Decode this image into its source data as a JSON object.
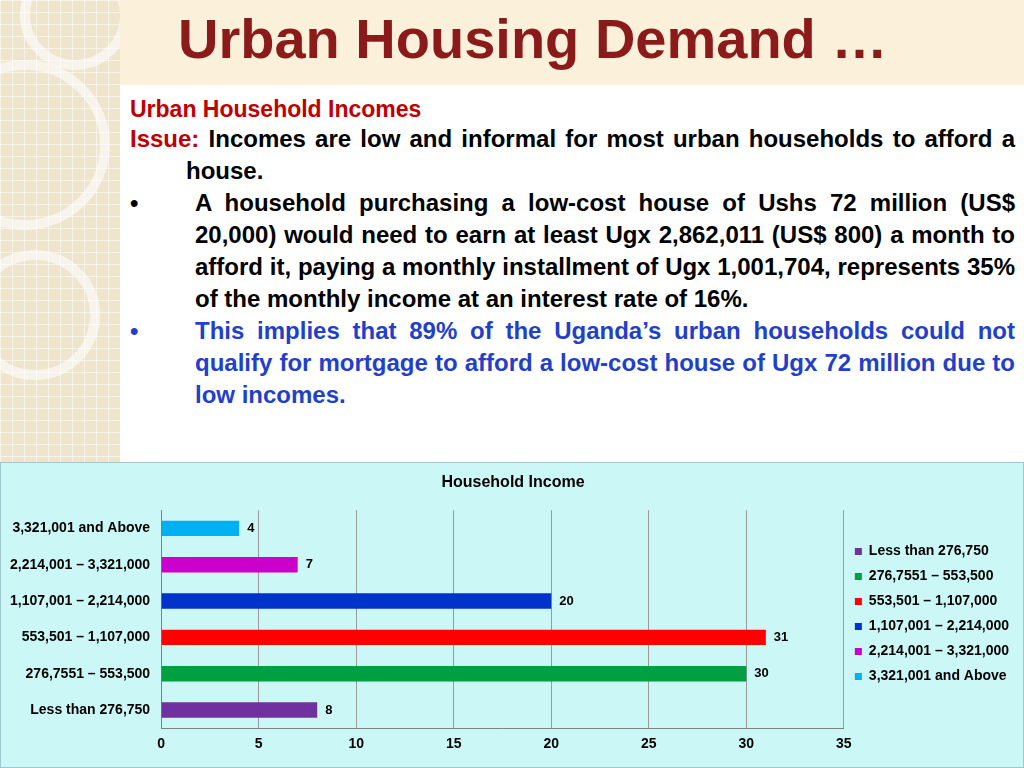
{
  "slide": {
    "title": "Urban Housing Demand …",
    "heading": "Urban Household Incomes",
    "issue_label": "Issue:",
    "issue_text": "Incomes are low and informal for most urban households to afford a house.",
    "bullets": [
      "A household purchasing a low-cost house of Ushs 72 million (US$ 20,000) would need to earn at least Ugx 2,862,011 (US$ 800) a month to afford it, paying a monthly installment of Ugx 1,001,704, represents 35% of the monthly income at an interest rate of 16%.",
      "This implies that 89% of the Uganda’s urban households could not qualify for mortgage to afford a low-cost house of Ugx 72 million due to low incomes."
    ]
  },
  "chart_data": {
    "type": "bar",
    "title": "Household Income",
    "orientation": "horizontal",
    "categories": [
      "Less than 276,750",
      "276,7551 – 553,500",
      "553,501 – 1,107,000",
      "1,107,001 – 2,214,000",
      "2,214,001 – 3,321,000",
      "3,321,001 and Above"
    ],
    "values": [
      8,
      30,
      31,
      20,
      7,
      4
    ],
    "colors": [
      "#7030a0",
      "#00a040",
      "#ff0000",
      "#0033cc",
      "#cc00cc",
      "#00b0f0"
    ],
    "xlim": [
      0,
      35
    ],
    "xticks": [
      0,
      5,
      10,
      15,
      20,
      25,
      30,
      35
    ],
    "grid": true,
    "legend": "right",
    "data_labels": true
  }
}
